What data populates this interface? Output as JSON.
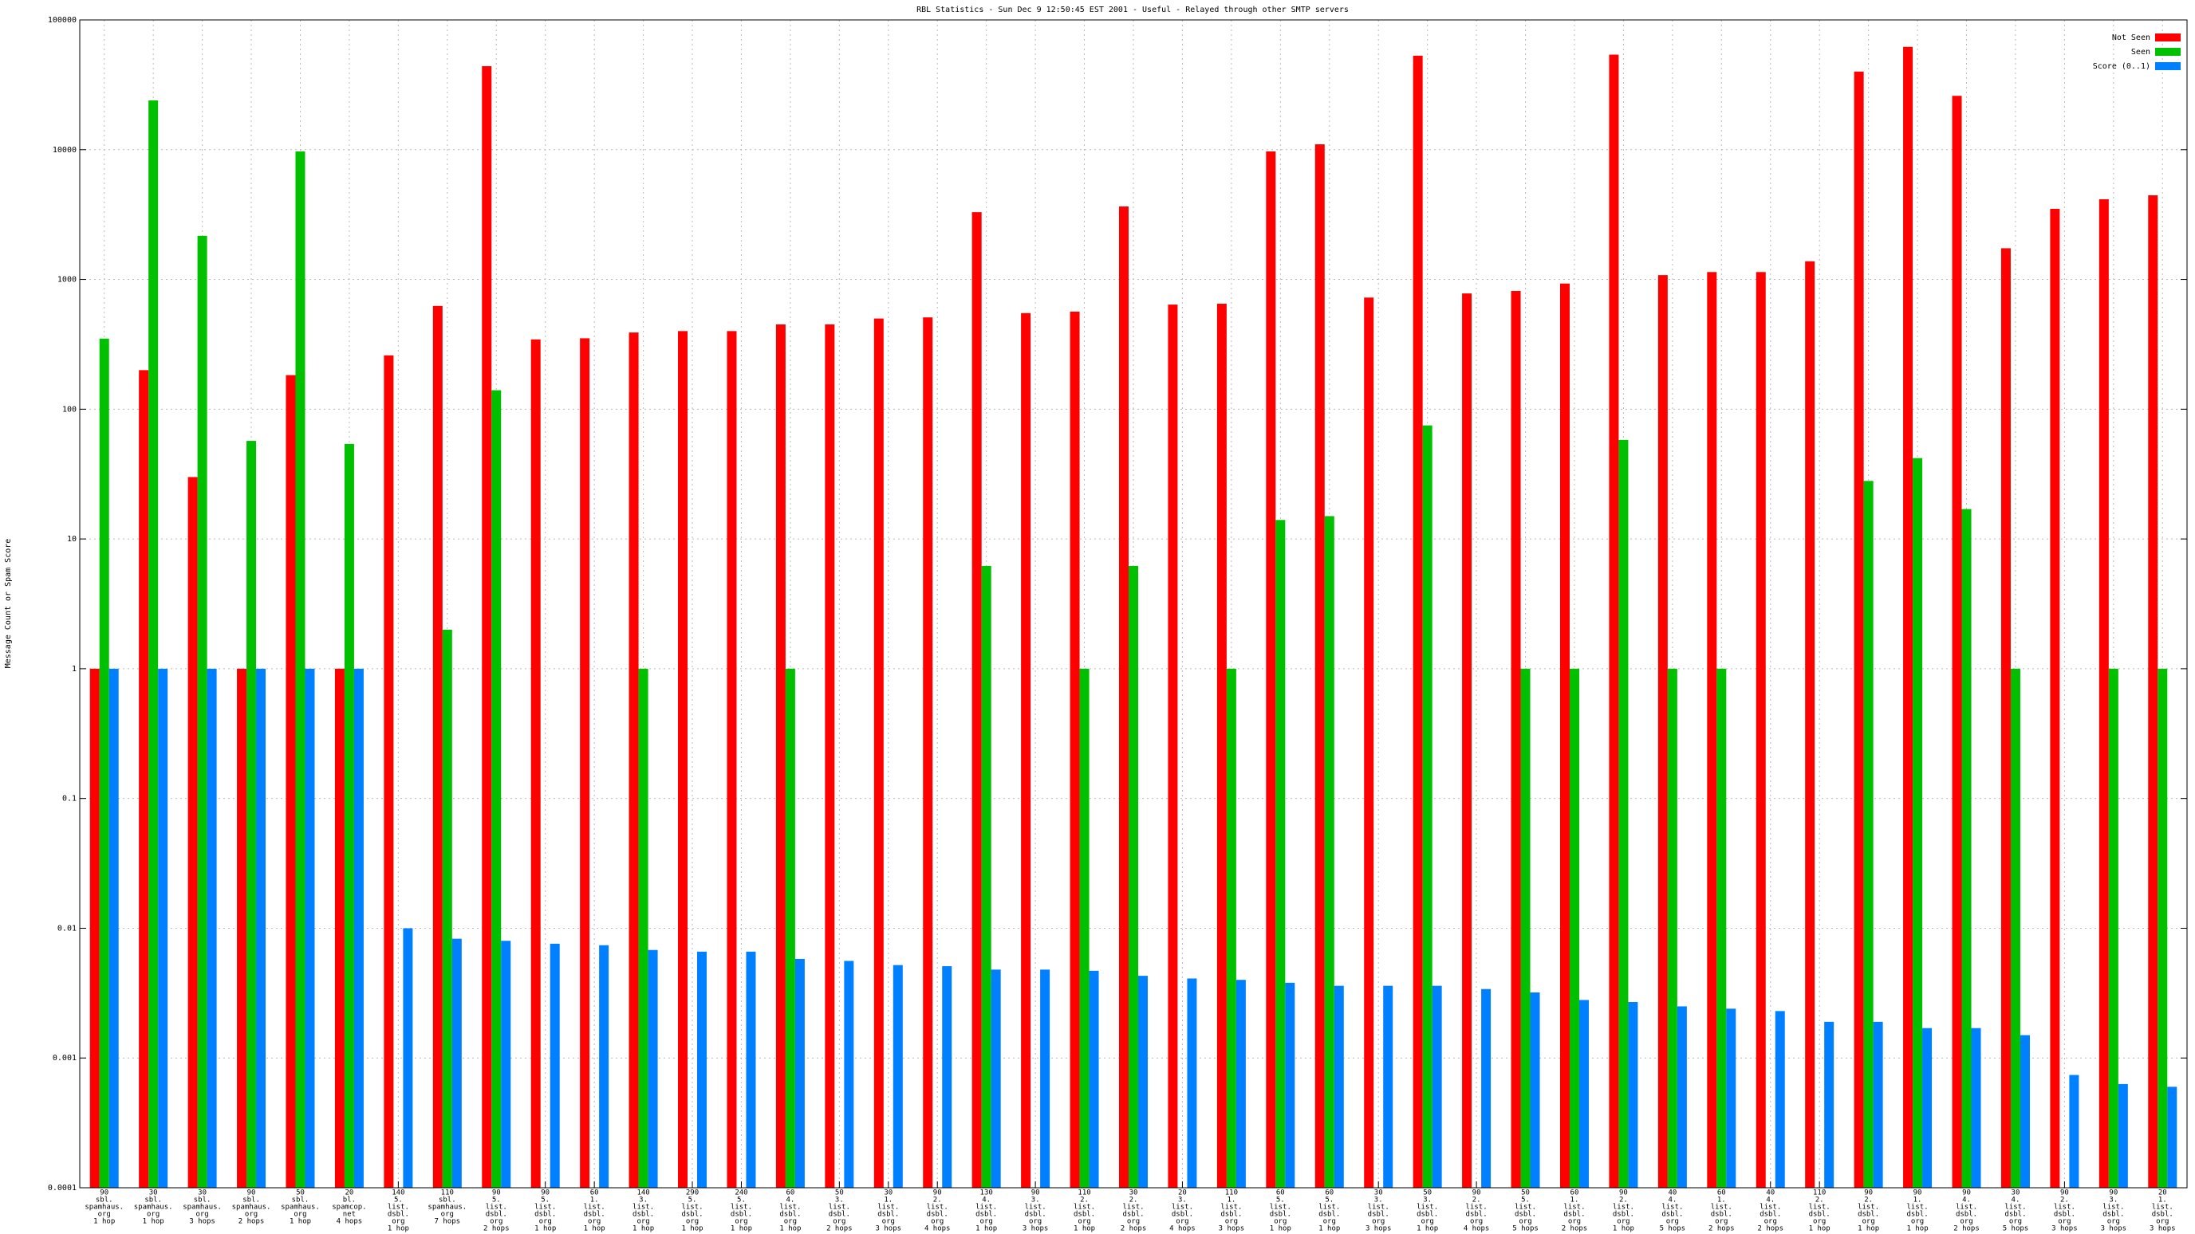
{
  "chart_data": {
    "type": "bar",
    "title": "RBL Statistics - Sun Dec  9 12:50:45 EST 2001 - Useful - Relayed through other SMTP servers",
    "y_label": "Message Count or Spam Score",
    "log_scale": true,
    "grid": true,
    "legend_position": "top-right",
    "ylim": [
      0.0001,
      100000
    ],
    "yticks": [
      0.0001,
      0.001,
      0.01,
      0.1,
      1,
      10,
      100,
      1000,
      10000,
      100000
    ],
    "categories": [
      [
        "90",
        "sbl.",
        "spamhaus.",
        "org",
        "1 hop"
      ],
      [
        "30",
        "sbl.",
        "spamhaus.",
        "org",
        "1 hop"
      ],
      [
        "30",
        "sbl.",
        "spamhaus.",
        "org",
        "3 hops"
      ],
      [
        "90",
        "sbl.",
        "spamhaus.",
        "org",
        "2 hops"
      ],
      [
        "50",
        "sbl.",
        "spamhaus.",
        "org",
        "1 hop"
      ],
      [
        "20",
        "bl.",
        "spamcop.",
        "net",
        "4 hops"
      ],
      [
        "140",
        "5.",
        "list.",
        "dsbl.",
        "org",
        "1 hop"
      ],
      [
        "110",
        "sbl.",
        "spamhaus.",
        "org",
        "7 hops"
      ],
      [
        "90",
        "5.",
        "list.",
        "dsbl.",
        "org",
        "2 hops"
      ],
      [
        "90",
        "5.",
        "list.",
        "dsbl.",
        "org",
        "1 hop"
      ],
      [
        "60",
        "1.",
        "list.",
        "dsbl.",
        "org",
        "1 hop"
      ],
      [
        "140",
        "3.",
        "list.",
        "dsbl.",
        "org",
        "1 hop"
      ],
      [
        "290",
        "5.",
        "list.",
        "dsbl.",
        "org",
        "1 hop"
      ],
      [
        "240",
        "5.",
        "list.",
        "dsbl.",
        "org",
        "1 hop"
      ],
      [
        "60",
        "4.",
        "list.",
        "dsbl.",
        "org",
        "1 hop"
      ],
      [
        "50",
        "3.",
        "list.",
        "dsbl.",
        "org",
        "2 hops"
      ],
      [
        "30",
        "1.",
        "list.",
        "dsbl.",
        "org",
        "3 hops"
      ],
      [
        "90",
        "2.",
        "list.",
        "dsbl.",
        "org",
        "4 hops"
      ],
      [
        "130",
        "4.",
        "list.",
        "dsbl.",
        "org",
        "1 hop"
      ],
      [
        "90",
        "3.",
        "list.",
        "dsbl.",
        "org",
        "3 hops"
      ],
      [
        "110",
        "2.",
        "list.",
        "dsbl.",
        "org",
        "1 hop"
      ],
      [
        "30",
        "2.",
        "list.",
        "dsbl.",
        "org",
        "2 hops"
      ],
      [
        "20",
        "3.",
        "list.",
        "dsbl.",
        "org",
        "4 hops"
      ],
      [
        "110",
        "1.",
        "list.",
        "dsbl.",
        "org",
        "3 hops"
      ],
      [
        "60",
        "5.",
        "list.",
        "dsbl.",
        "org",
        "1 hop"
      ],
      [
        "60",
        "5.",
        "list.",
        "dsbl.",
        "org",
        "1 hop"
      ],
      [
        "30",
        "3.",
        "list.",
        "dsbl.",
        "org",
        "3 hops"
      ],
      [
        "50",
        "3.",
        "list.",
        "dsbl.",
        "org",
        "1 hop"
      ],
      [
        "90",
        "2.",
        "list.",
        "dsbl.",
        "org",
        "4 hops"
      ],
      [
        "50",
        "5.",
        "list.",
        "dsbl.",
        "org",
        "5 hops"
      ],
      [
        "60",
        "1.",
        "list.",
        "dsbl.",
        "org",
        "2 hops"
      ],
      [
        "90",
        "2.",
        "list.",
        "dsbl.",
        "org",
        "1 hop"
      ],
      [
        "40",
        "4.",
        "list.",
        "dsbl.",
        "org",
        "5 hops"
      ],
      [
        "60",
        "1.",
        "list.",
        "dsbl.",
        "org",
        "2 hops"
      ],
      [
        "40",
        "4.",
        "list.",
        "dsbl.",
        "org",
        "2 hops"
      ],
      [
        "110",
        "2.",
        "list.",
        "dsbl.",
        "org",
        "1 hop"
      ],
      [
        "90",
        "2.",
        "list.",
        "dsbl.",
        "org",
        "1 hop"
      ],
      [
        "90",
        "1.",
        "list.",
        "dsbl.",
        "org",
        "1 hop"
      ],
      [
        "90",
        "4.",
        "list.",
        "dsbl.",
        "org",
        "2 hops"
      ],
      [
        "30",
        "4.",
        "list.",
        "dsbl.",
        "org",
        "5 hops"
      ],
      [
        "90",
        "2.",
        "list.",
        "dsbl.",
        "org",
        "3 hops"
      ],
      [
        "90",
        "3.",
        "list.",
        "dsbl.",
        "org",
        "3 hops"
      ],
      [
        "20",
        "1.",
        "list.",
        "dsbl.",
        "org",
        "3 hops"
      ]
    ],
    "series": [
      {
        "name": "Not Seen",
        "color": "#ff0000",
        "values": [
          1,
          200,
          30,
          1,
          183,
          1,
          260,
          625,
          44000,
          345,
          352,
          390,
          400,
          400,
          450,
          450,
          500,
          510,
          3300,
          550,
          565,
          3650,
          640,
          650,
          9700,
          11000,
          725,
          53000,
          780,
          815,
          930,
          54000,
          1080,
          1140,
          1140,
          1380,
          40000,
          62000,
          26000,
          1740,
          3500,
          4150,
          4450
        ]
      },
      {
        "name": "Seen",
        "color": "#00c000",
        "values": [
          350,
          24000,
          2170,
          57,
          9700,
          54,
          null,
          2,
          140,
          null,
          null,
          1,
          null,
          null,
          1,
          null,
          null,
          null,
          6.2,
          null,
          1,
          6.2,
          null,
          1,
          14,
          15,
          null,
          75,
          null,
          1,
          1,
          58,
          1,
          1,
          null,
          null,
          28,
          42,
          17,
          1,
          null,
          1,
          1
        ]
      },
      {
        "name": "Score (0..1)",
        "color": "#0080ff",
        "values": [
          1,
          1,
          1,
          1,
          1,
          1,
          0.01,
          0.0083,
          0.008,
          0.0076,
          0.0074,
          0.0068,
          0.0066,
          0.0066,
          0.0058,
          0.0056,
          0.0052,
          0.0051,
          0.0048,
          0.0048,
          0.0047,
          0.0043,
          0.0041,
          0.004,
          0.0038,
          0.0036,
          0.0036,
          0.0036,
          0.0034,
          0.0032,
          0.0028,
          0.0027,
          0.0025,
          0.0024,
          0.0023,
          0.0019,
          0.0019,
          0.0017,
          0.0017,
          0.0015,
          0.00074,
          0.00063,
          0.0006
        ]
      }
    ]
  }
}
